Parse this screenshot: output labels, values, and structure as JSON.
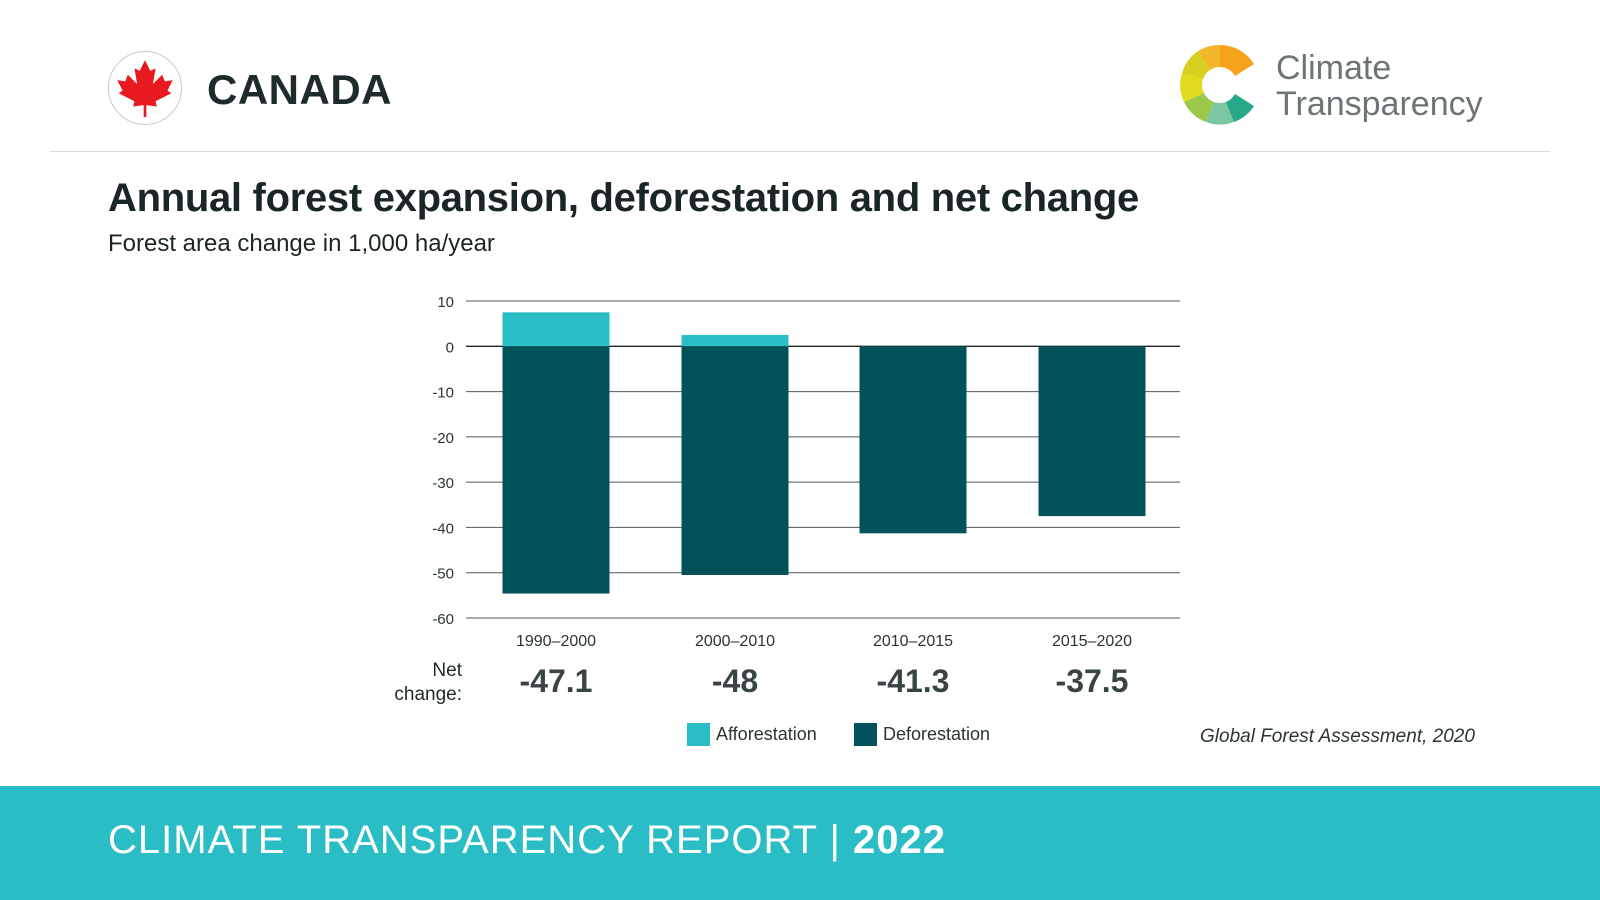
{
  "header": {
    "country": "CANADA",
    "logo_line1": "Climate",
    "logo_line2": "Transparency",
    "flag_icon": "canada-maple-leaf-icon"
  },
  "title": "Annual forest expansion, deforestation and net change",
  "subtitle": "Forest area change in 1,000 ha/year",
  "net_change_label_1": "Net",
  "net_change_label_2": "change:",
  "source": "Global Forest Assessment, 2020",
  "footer": {
    "text": "CLIMATE TRANSPARENCY REPORT",
    "separator": "|",
    "year": "2022"
  },
  "colors": {
    "afforestation": "#2bbdc5",
    "deforestation": "#02525b",
    "footer": "#2bbdc5",
    "flag_red": "#e8191f"
  },
  "chart_data": {
    "type": "bar",
    "stacked": true,
    "categories": [
      "1990–2000",
      "2000–2010",
      "2010–2015",
      "2015–2020"
    ],
    "series": [
      {
        "name": "Afforestation",
        "values": [
          7.5,
          2.5,
          0,
          0
        ]
      },
      {
        "name": "Deforestation",
        "values": [
          -54.6,
          -50.5,
          -41.3,
          -37.5
        ]
      }
    ],
    "net_change": [
      "-47.1",
      "-48",
      "-41.3",
      "-37.5"
    ],
    "ylim": [
      -60,
      10
    ],
    "yticks": [
      "10",
      "0",
      "-10",
      "-20",
      "-30",
      "-40",
      "-50",
      "-60"
    ],
    "grid": true,
    "legend": "bottom-center"
  }
}
